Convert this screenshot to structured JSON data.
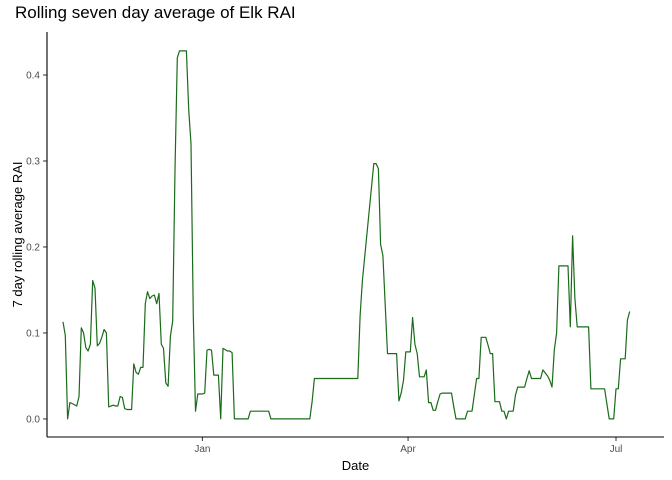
{
  "chart_data": {
    "type": "line",
    "title": "Rolling seven day average of Elk RAI",
    "xlabel": "Date",
    "ylabel": "7 day rolling average RAI",
    "x_ticks": [
      {
        "label": "Jan",
        "date": "2019-01-01"
      },
      {
        "label": "Apr",
        "date": "2019-04-01"
      },
      {
        "label": "Jul",
        "date": "2019-07-01"
      }
    ],
    "y_ticks": [
      0.0,
      0.1,
      0.2,
      0.3,
      0.4
    ],
    "y_tick_labels": [
      "0.0",
      "0.1",
      "0.2",
      "0.3",
      "0.4"
    ],
    "xlim": [
      "2018-10-25",
      "2019-07-22"
    ],
    "ylim": [
      -0.021,
      0.45
    ],
    "grid": false,
    "legend": "none",
    "series": [
      {
        "color": "#1a6b1a",
        "x": [
          "2018-11-01",
          "2018-11-02",
          "2018-11-03",
          "2018-11-04",
          "2018-11-05",
          "2018-11-07",
          "2018-11-08",
          "2018-11-09",
          "2018-11-10",
          "2018-11-11",
          "2018-11-12",
          "2018-11-13",
          "2018-11-14",
          "2018-11-15",
          "2018-11-16",
          "2018-11-17",
          "2018-11-18",
          "2018-11-19",
          "2018-11-20",
          "2018-11-21",
          "2018-11-22",
          "2018-11-23",
          "2018-11-24",
          "2018-11-25",
          "2018-11-26",
          "2018-11-27",
          "2018-11-28",
          "2018-11-29",
          "2018-11-30",
          "2018-12-01",
          "2018-12-02",
          "2018-12-03",
          "2018-12-04",
          "2018-12-05",
          "2018-12-06",
          "2018-12-07",
          "2018-12-08",
          "2018-12-09",
          "2018-12-10",
          "2018-12-11",
          "2018-12-12",
          "2018-12-13",
          "2018-12-14",
          "2018-12-15",
          "2018-12-16",
          "2018-12-17",
          "2018-12-18",
          "2018-12-19",
          "2018-12-20",
          "2018-12-21",
          "2018-12-22",
          "2018-12-25",
          "2018-12-26",
          "2018-12-27",
          "2018-12-28",
          "2018-12-29",
          "2018-12-30",
          "2019-01-01",
          "2019-01-02",
          "2019-01-03",
          "2019-01-04",
          "2019-01-05",
          "2019-01-06",
          "2019-01-07",
          "2019-01-08",
          "2019-01-09",
          "2019-01-10",
          "2019-01-12",
          "2019-01-13",
          "2019-01-14",
          "2019-01-15",
          "2019-01-16",
          "2019-01-19",
          "2019-01-20",
          "2019-01-21",
          "2019-01-22",
          "2019-01-29",
          "2019-01-30",
          "2019-01-31",
          "2019-02-07",
          "2019-02-08",
          "2019-02-17",
          "2019-02-18",
          "2019-02-19",
          "2019-02-20",
          "2019-02-21",
          "2019-03-10",
          "2019-03-11",
          "2019-03-12",
          "2019-03-17",
          "2019-03-18",
          "2019-03-19",
          "2019-03-20",
          "2019-03-21",
          "2019-03-23",
          "2019-03-24",
          "2019-03-25",
          "2019-03-26",
          "2019-03-27",
          "2019-03-28",
          "2019-03-29",
          "2019-03-30",
          "2019-03-31",
          "2019-04-01",
          "2019-04-02",
          "2019-04-03",
          "2019-04-04",
          "2019-04-05",
          "2019-04-06",
          "2019-04-07",
          "2019-04-08",
          "2019-04-09",
          "2019-04-10",
          "2019-04-11",
          "2019-04-12",
          "2019-04-13",
          "2019-04-14",
          "2019-04-15",
          "2019-04-16",
          "2019-04-17",
          "2019-04-18",
          "2019-04-19",
          "2019-04-20",
          "2019-04-21",
          "2019-04-22",
          "2019-04-23",
          "2019-04-24",
          "2019-04-25",
          "2019-04-26",
          "2019-04-27",
          "2019-04-28",
          "2019-04-29",
          "2019-04-30",
          "2019-05-01",
          "2019-05-02",
          "2019-05-03",
          "2019-05-04",
          "2019-05-05",
          "2019-05-06",
          "2019-05-07",
          "2019-05-08",
          "2019-05-09",
          "2019-05-10",
          "2019-05-11",
          "2019-05-12",
          "2019-05-13",
          "2019-05-14",
          "2019-05-15",
          "2019-05-16",
          "2019-05-17",
          "2019-05-18",
          "2019-05-19",
          "2019-05-20",
          "2019-05-21",
          "2019-05-22",
          "2019-05-23",
          "2019-05-24",
          "2019-05-25",
          "2019-05-26",
          "2019-05-27",
          "2019-05-28",
          "2019-05-29",
          "2019-05-30",
          "2019-06-01",
          "2019-06-02",
          "2019-06-03",
          "2019-06-04",
          "2019-06-05",
          "2019-06-06",
          "2019-06-07",
          "2019-06-08",
          "2019-06-09",
          "2019-06-10",
          "2019-06-11",
          "2019-06-12",
          "2019-06-13",
          "2019-06-14",
          "2019-06-15",
          "2019-06-16",
          "2019-06-17",
          "2019-06-18",
          "2019-06-19",
          "2019-06-20",
          "2019-06-21",
          "2019-06-22",
          "2019-06-23",
          "2019-06-24",
          "2019-06-25",
          "2019-06-26",
          "2019-06-28",
          "2019-06-29",
          "2019-06-30",
          "2019-07-01",
          "2019-07-02",
          "2019-07-03",
          "2019-07-04",
          "2019-07-05",
          "2019-07-06",
          "2019-07-07"
        ],
        "y": [
          0.113,
          0.097,
          0.0,
          0.019,
          0.018,
          0.015,
          0.026,
          0.106,
          0.1,
          0.083,
          0.079,
          0.087,
          0.161,
          0.152,
          0.085,
          0.088,
          0.095,
          0.104,
          0.1,
          0.014,
          0.015,
          0.016,
          0.015,
          0.015,
          0.026,
          0.025,
          0.012,
          0.011,
          0.011,
          0.011,
          0.064,
          0.054,
          0.052,
          0.06,
          0.06,
          0.134,
          0.148,
          0.14,
          0.143,
          0.144,
          0.134,
          0.146,
          0.087,
          0.082,
          0.042,
          0.038,
          0.096,
          0.114,
          0.29,
          0.42,
          0.428,
          0.428,
          0.36,
          0.32,
          0.12,
          0.009,
          0.029,
          0.029,
          0.03,
          0.08,
          0.081,
          0.08,
          0.051,
          0.051,
          0.051,
          0.0,
          0.082,
          0.079,
          0.079,
          0.077,
          0.0,
          0.0,
          0.0,
          0.0,
          0.0,
          0.009,
          0.009,
          0.009,
          0.0,
          0.0,
          0.0,
          0.0,
          0.02,
          0.047,
          0.047,
          0.047,
          0.047,
          0.12,
          0.161,
          0.297,
          0.297,
          0.291,
          0.203,
          0.19,
          0.076,
          0.076,
          0.076,
          0.076,
          0.076,
          0.021,
          0.03,
          0.045,
          0.078,
          0.078,
          0.078,
          0.118,
          0.087,
          0.076,
          0.049,
          0.049,
          0.049,
          0.057,
          0.019,
          0.019,
          0.01,
          0.01,
          0.02,
          0.029,
          0.03,
          0.03,
          0.03,
          0.03,
          0.03,
          0.014,
          0.0,
          0.0,
          0.0,
          0.0,
          0.0,
          0.009,
          0.009,
          0.009,
          0.028,
          0.047,
          0.047,
          0.095,
          0.095,
          0.095,
          0.086,
          0.076,
          0.076,
          0.02,
          0.02,
          0.02,
          0.009,
          0.009,
          0.0,
          0.009,
          0.009,
          0.009,
          0.028,
          0.037,
          0.037,
          0.037,
          0.037,
          0.047,
          0.056,
          0.047,
          0.047,
          0.047,
          0.047,
          0.047,
          0.057,
          0.05,
          0.045,
          0.037,
          0.08,
          0.1,
          0.178,
          0.178,
          0.178,
          0.178,
          0.178,
          0.107,
          0.213,
          0.14,
          0.107,
          0.107,
          0.107,
          0.107,
          0.107,
          0.107,
          0.035,
          0.035,
          0.035,
          0.035,
          0.035,
          0.035,
          0.035,
          0.0,
          0.0,
          0.0,
          0.035,
          0.035,
          0.07,
          0.07,
          0.07,
          0.115,
          0.125
        ]
      }
    ]
  }
}
